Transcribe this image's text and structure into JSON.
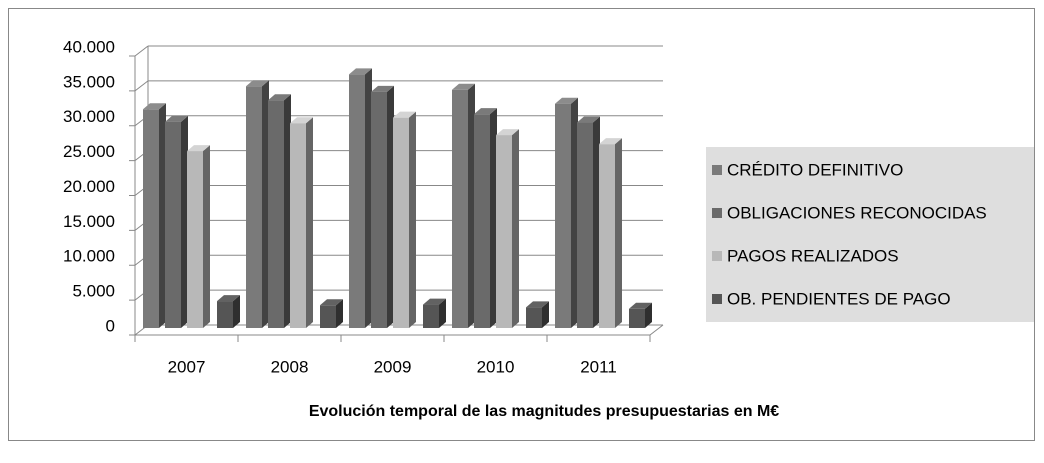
{
  "chart_data": {
    "type": "bar3d",
    "title": "Evolución temporal de las magnitudes presupuestarias en M€",
    "categories": [
      "2007",
      "2008",
      "2009",
      "2010",
      "2011"
    ],
    "series": [
      {
        "name": "CRÉDITO DEFINITIVO",
        "color": "#7a7a7a",
        "values": [
          31500,
          34800,
          36500,
          34300,
          32300
        ]
      },
      {
        "name": "OBLIGACIONES RECONOCIDAS",
        "color": "#6a6a6a",
        "values": [
          29700,
          32800,
          34000,
          30800,
          29600
        ]
      },
      {
        "name": "PAGOS REALIZADOS",
        "color": "#b8b8b8",
        "values": [
          25500,
          29500,
          30300,
          27800,
          26500
        ]
      },
      {
        "name": "OB. PENDIENTES DE PAGO",
        "color": "#555555",
        "values": [
          4000,
          3400,
          3500,
          3100,
          2900
        ]
      }
    ],
    "ylim": [
      0,
      40000
    ],
    "yticks": [
      {
        "value": 0,
        "label": "0"
      },
      {
        "value": 5000,
        "label": "5.000"
      },
      {
        "value": 10000,
        "label": "10.000"
      },
      {
        "value": 15000,
        "label": "15.000"
      },
      {
        "value": 20000,
        "label": "20.000"
      },
      {
        "value": 25000,
        "label": "25.000"
      },
      {
        "value": 30000,
        "label": "30.000"
      },
      {
        "value": 35000,
        "label": "35.000"
      },
      {
        "value": 40000,
        "label": "40.000"
      }
    ],
    "grid": true,
    "legend": "right"
  }
}
